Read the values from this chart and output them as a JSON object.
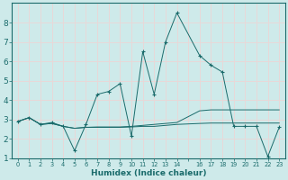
{
  "xlabel": "Humidex (Indice chaleur)",
  "bg_color": "#ceeaea",
  "grid_color": "#e8d8d8",
  "line_color": "#1a6b6b",
  "xlim": [
    -0.5,
    23.5
  ],
  "ylim": [
    1,
    9
  ],
  "yticks": [
    1,
    2,
    3,
    4,
    5,
    6,
    7,
    8
  ],
  "xtick_vals": [
    0,
    1,
    2,
    3,
    4,
    5,
    6,
    7,
    8,
    9,
    10,
    11,
    12,
    13,
    14,
    15,
    16,
    17,
    18,
    19,
    20,
    21,
    22,
    23
  ],
  "xtick_labels": [
    "0",
    "1",
    "2",
    "3",
    "4",
    "5",
    "6",
    "7",
    "8",
    "9",
    "10",
    "11",
    "12",
    "13",
    "14",
    "",
    "16",
    "17",
    "18",
    "19",
    "20",
    "21",
    "22",
    "23"
  ],
  "series_main": [
    [
      0,
      2.9
    ],
    [
      1,
      3.1
    ],
    [
      2,
      2.75
    ],
    [
      3,
      2.85
    ],
    [
      4,
      2.65
    ],
    [
      5,
      1.4
    ],
    [
      6,
      2.75
    ],
    [
      7,
      4.3
    ],
    [
      8,
      4.45
    ],
    [
      9,
      4.85
    ],
    [
      10,
      2.15
    ],
    [
      11,
      6.5
    ],
    [
      12,
      4.3
    ],
    [
      13,
      7.0
    ],
    [
      14,
      8.5
    ],
    [
      16,
      6.3
    ],
    [
      17,
      5.8
    ],
    [
      18,
      5.45
    ],
    [
      19,
      2.65
    ],
    [
      20,
      2.65
    ],
    [
      21,
      2.65
    ],
    [
      22,
      1.1
    ],
    [
      23,
      2.6
    ]
  ],
  "series_flat1": [
    [
      0,
      2.9
    ],
    [
      1,
      3.1
    ],
    [
      2,
      2.75
    ],
    [
      3,
      2.8
    ],
    [
      4,
      2.65
    ],
    [
      5,
      2.55
    ],
    [
      6,
      2.6
    ],
    [
      7,
      2.6
    ],
    [
      8,
      2.6
    ],
    [
      9,
      2.6
    ],
    [
      10,
      2.62
    ],
    [
      11,
      2.65
    ],
    [
      12,
      2.65
    ],
    [
      13,
      2.7
    ],
    [
      14,
      2.75
    ],
    [
      16,
      2.8
    ],
    [
      17,
      2.82
    ],
    [
      18,
      2.82
    ],
    [
      19,
      2.82
    ],
    [
      20,
      2.82
    ],
    [
      21,
      2.82
    ],
    [
      22,
      2.82
    ],
    [
      23,
      2.82
    ]
  ],
  "series_flat2": [
    [
      0,
      2.9
    ],
    [
      1,
      3.1
    ],
    [
      2,
      2.75
    ],
    [
      3,
      2.8
    ],
    [
      4,
      2.65
    ],
    [
      5,
      2.55
    ],
    [
      6,
      2.6
    ],
    [
      7,
      2.62
    ],
    [
      8,
      2.62
    ],
    [
      9,
      2.62
    ],
    [
      10,
      2.65
    ],
    [
      11,
      2.7
    ],
    [
      12,
      2.75
    ],
    [
      13,
      2.8
    ],
    [
      14,
      2.85
    ],
    [
      16,
      3.45
    ],
    [
      17,
      3.5
    ],
    [
      18,
      3.5
    ],
    [
      19,
      3.5
    ],
    [
      20,
      3.5
    ],
    [
      21,
      3.5
    ],
    [
      22,
      3.5
    ],
    [
      23,
      3.5
    ]
  ]
}
